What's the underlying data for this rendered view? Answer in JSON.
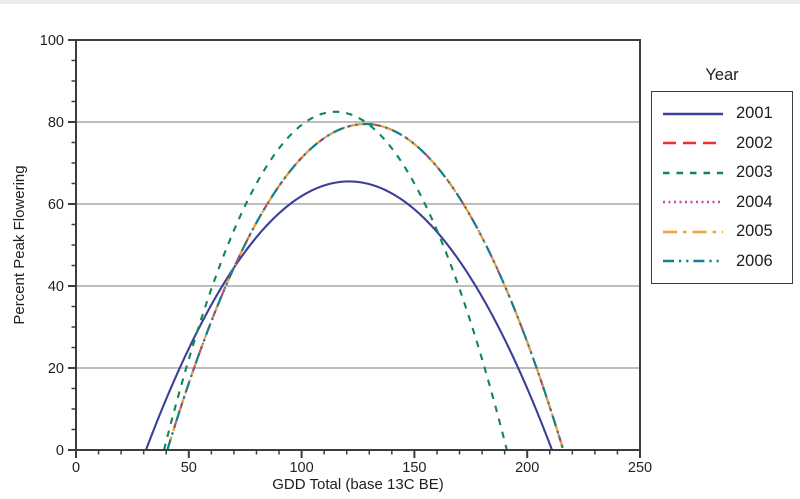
{
  "chart_data": {
    "type": "line",
    "title": "",
    "xlabel": "GDD Total (base 13C BE)",
    "ylabel": "Percent Peak Flowering",
    "xlim": [
      0,
      250
    ],
    "ylim": [
      0,
      100
    ],
    "x_ticks": [
      0,
      50,
      100,
      150,
      200,
      250
    ],
    "x_minor_step": 10,
    "y_ticks": [
      0,
      20,
      40,
      60,
      80,
      100
    ],
    "y_minor_step": 5,
    "gridlines_y": [
      20,
      40,
      60,
      80
    ],
    "grid": "horizontal-major-only",
    "legend_title": "Year",
    "legend_position": "right",
    "curve_model": "symmetric parabola: y = peak.y * (1 - ((x - peak.x) / half_width)^2), zero at x = zeros[0] and zeros[1]",
    "series": [
      {
        "name": "2001",
        "color": "#3c3f9a",
        "dash": "solid",
        "zeros": [
          31,
          211
        ],
        "peak": {
          "x": 121,
          "y": 65.5
        }
      },
      {
        "name": "2002",
        "color": "#e8322e",
        "dash": "long-dash",
        "zeros": [
          40.5,
          216
        ],
        "peak": {
          "x": 128.25,
          "y": 79.5
        }
      },
      {
        "name": "2003",
        "color": "#0e8851",
        "dash": "dash",
        "zeros": [
          39,
          191
        ],
        "peak": {
          "x": 115,
          "y": 82.5
        }
      },
      {
        "name": "2004",
        "color": "#b94fb3",
        "dash": "dot",
        "zeros": [
          40.5,
          216
        ],
        "peak": {
          "x": 128.25,
          "y": 79.5
        }
      },
      {
        "name": "2005",
        "color": "#f49f37",
        "dash": "dash-dot",
        "zeros": [
          40.5,
          216
        ],
        "peak": {
          "x": 128.25,
          "y": 79.5
        }
      },
      {
        "name": "2006",
        "color": "#0e828c",
        "dash": "dash-dot-dot",
        "zeros": [
          40.5,
          216
        ],
        "peak": {
          "x": 128.25,
          "y": 79.5
        }
      }
    ],
    "colors": {
      "axis": "#3d3d3d",
      "grid": "#a8a8a8",
      "text": "#1f1f1f",
      "background": "#ffffff"
    }
  }
}
